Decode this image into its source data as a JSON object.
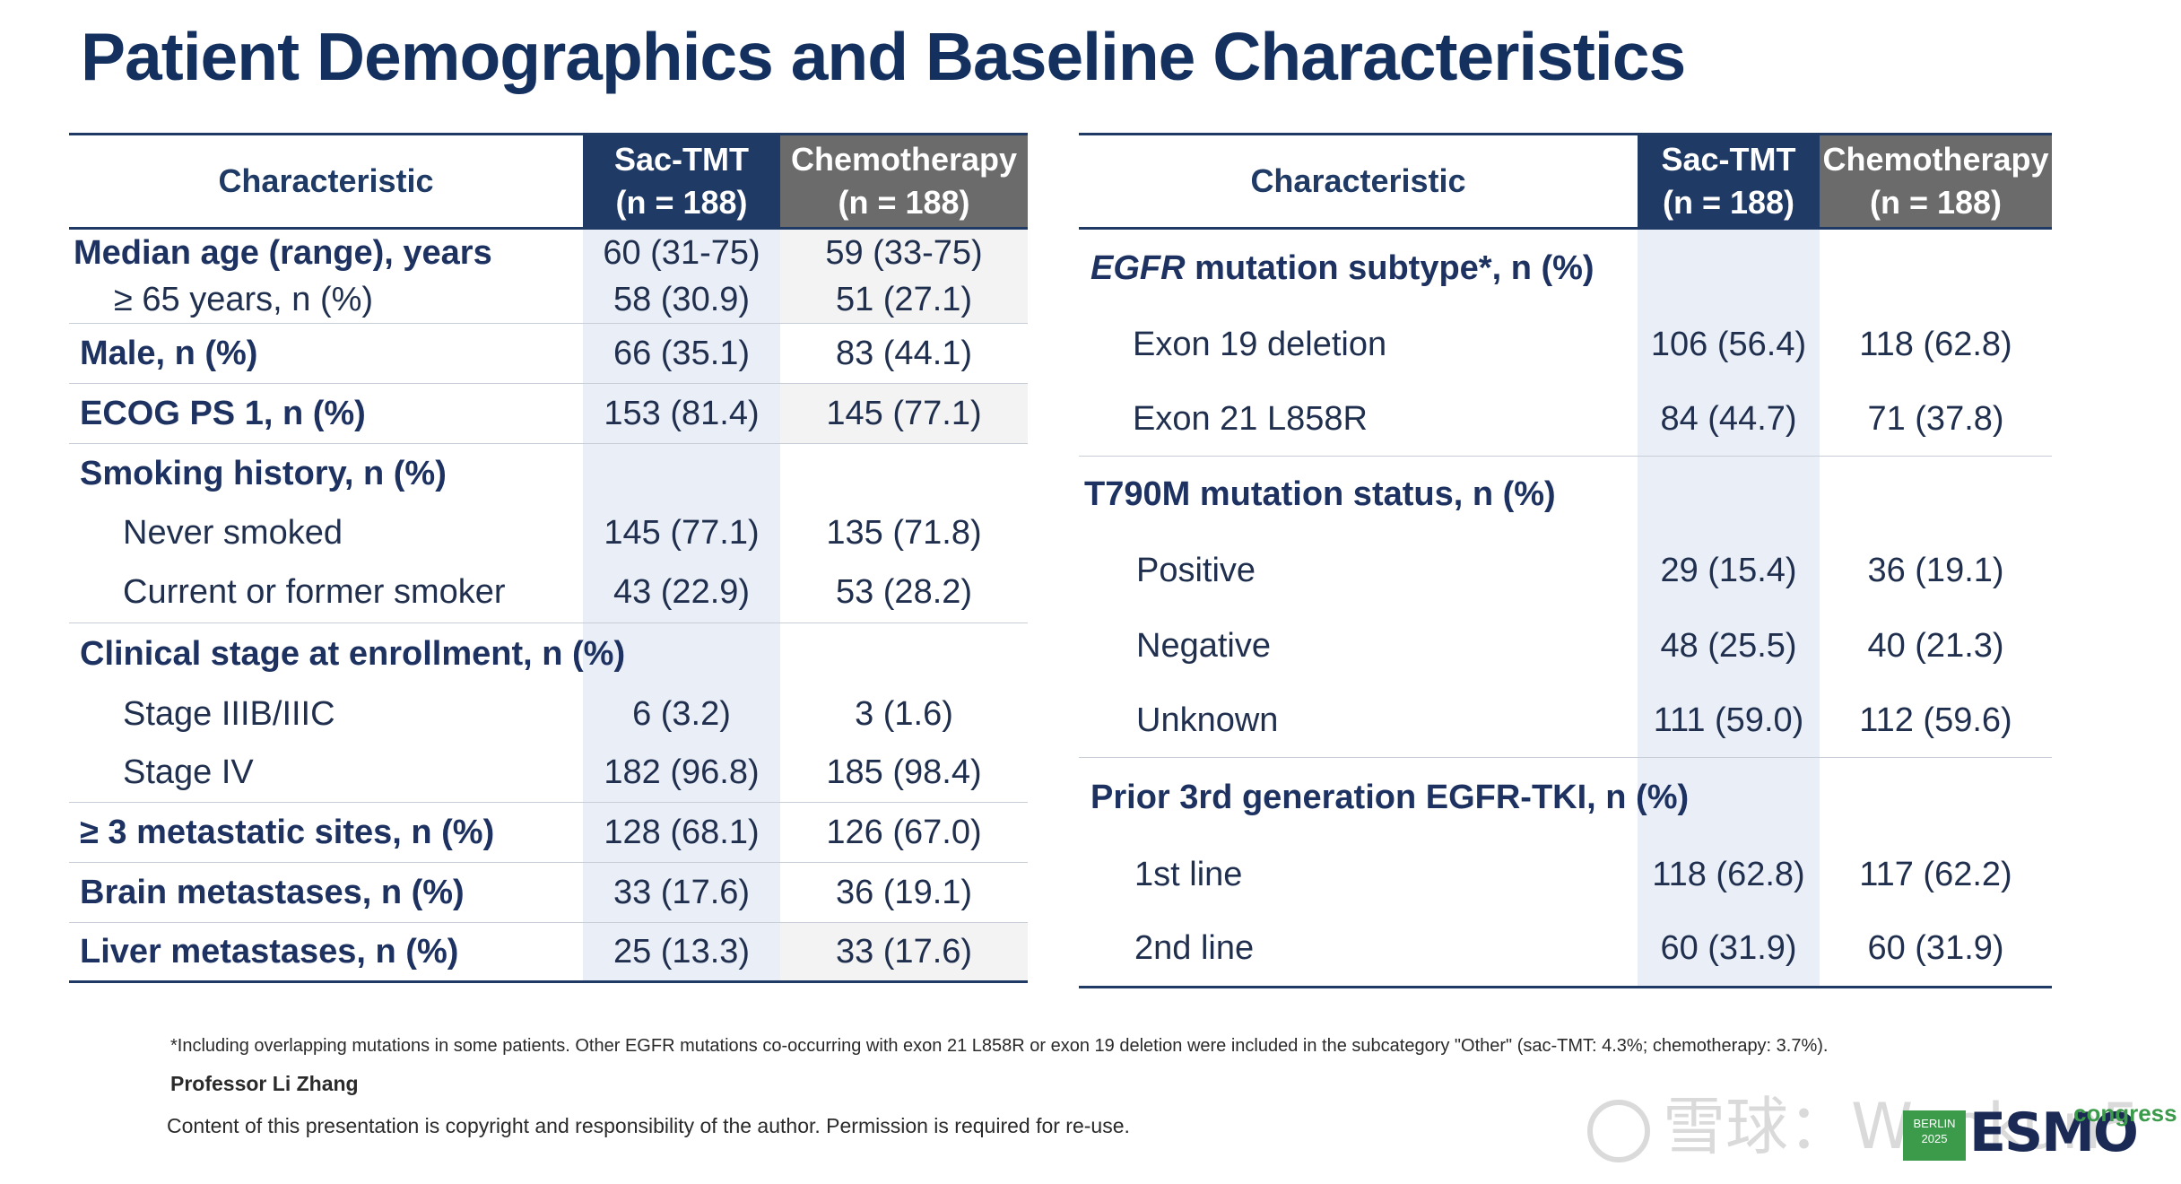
{
  "title": "Patient Demographics and Baseline Characteristics",
  "left_table": {
    "headers": {
      "characteristic": "Characteristic",
      "sac_line1": "Sac-TMT",
      "sac_line2": "(n = 188)",
      "chemo_line1": "Chemotherapy",
      "chemo_line2": "(n = 188)"
    },
    "rows": {
      "median_age": {
        "label": "Median age (range), years",
        "sac": "60 (31-75)",
        "chemo": "59 (33-75)"
      },
      "age65": {
        "label": "≥ 65 years, n (%)",
        "sac": "58 (30.9)",
        "chemo": "51 (27.1)"
      },
      "male": {
        "label": "Male, n (%)",
        "sac": "66 (35.1)",
        "chemo": "83 (44.1)"
      },
      "ecog": {
        "label": "ECOG PS 1, n (%)",
        "sac": "153 (81.4)",
        "chemo": "145 (77.1)"
      },
      "smoking": {
        "label": "Smoking history, n (%)"
      },
      "never_smoked": {
        "label": "Never smoked",
        "sac": "145 (77.1)",
        "chemo": "135 (71.8)"
      },
      "former_smoker": {
        "label": "Current or former smoker",
        "sac": "43 (22.9)",
        "chemo": "53 (28.2)"
      },
      "stage": {
        "label": "Clinical stage at enrollment, n (%)"
      },
      "stage3": {
        "label": "Stage IIIB/IIIC",
        "sac": "6 (3.2)",
        "chemo": "3 (1.6)"
      },
      "stage4": {
        "label": "Stage IV",
        "sac": "182 (96.8)",
        "chemo": "185 (98.4)"
      },
      "metastatic": {
        "label": "≥ 3 metastatic sites, n (%)",
        "sac": "128 (68.1)",
        "chemo": "126 (67.0)"
      },
      "brain": {
        "label": "Brain metastases, n (%)",
        "sac": "33 (17.6)",
        "chemo": "36 (19.1)"
      },
      "liver": {
        "label": "Liver metastases, n (%)",
        "sac": "25 (13.3)",
        "chemo": "33 (17.6)"
      }
    }
  },
  "right_table": {
    "headers": {
      "characteristic": "Characteristic",
      "sac_line1": "Sac-TMT",
      "sac_line2": "(n = 188)",
      "chemo_line1": "Chemotherapy",
      "chemo_line2": "(n = 188)"
    },
    "rows": {
      "egfr_subtype": {
        "label_italic": "EGFR",
        "label_rest": " mutation subtype*, n (%)"
      },
      "exon19": {
        "label": "Exon 19 deletion",
        "sac": "106 (56.4)",
        "chemo": "118 (62.8)"
      },
      "exon21": {
        "label": "Exon 21 L858R",
        "sac": "84 (44.7)",
        "chemo": "71 (37.8)"
      },
      "t790m": {
        "label": "T790M mutation status, n (%)"
      },
      "positive": {
        "label": "Positive",
        "sac": "29 (15.4)",
        "chemo": "36 (19.1)"
      },
      "negative": {
        "label": "Negative",
        "sac": "48 (25.5)",
        "chemo": "40 (21.3)"
      },
      "unknown": {
        "label": "Unknown",
        "sac": "111 (59.0)",
        "chemo": "112 (59.6)"
      },
      "prior_tki": {
        "label": "Prior 3rd generation EGFR-TKI, n (%)"
      },
      "line1": {
        "label": "1st line",
        "sac": "118 (62.8)",
        "chemo": "117 (62.2)"
      },
      "line2": {
        "label": "2nd line",
        "sac": "60 (31.9)",
        "chemo": "60 (31.9)"
      }
    }
  },
  "footnote": "*Including overlapping mutations in some patients. Other EGFR mutations co-occurring with exon 21 L858R or exon 19 deletion were included in the subcategory \"Other\" (sac-TMT: 4.3%; chemotherapy: 3.7%).",
  "presenter": "Professor Li Zhang",
  "copyright": "Content of this presentation is copyright and responsibility of the author. Permission is required for re-use.",
  "logo": {
    "city": "BERLIN",
    "year": "2025",
    "brand": "ESMO",
    "tagline": "congress"
  },
  "watermark": "雪球：Wankun5",
  "colors": {
    "title": "#14305f",
    "header_sac": "#203a66",
    "header_chemo": "#6b6b6b",
    "sac_column_bg": "#e9eef7",
    "rule": "#1f3a64",
    "esmo_green": "#3c9b4a"
  }
}
